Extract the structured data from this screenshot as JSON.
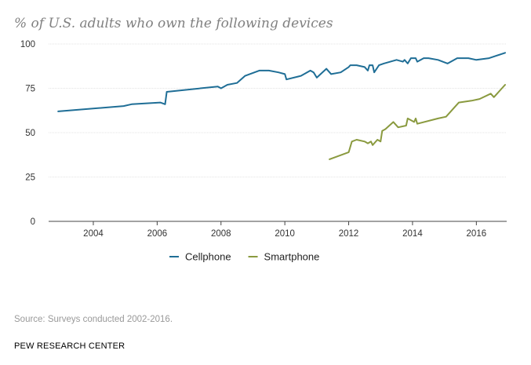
{
  "chart_data": {
    "type": "line",
    "title": "% of U.S. adults who own the following devices",
    "xlabel": "",
    "ylabel": "",
    "xlim": [
      2002.6,
      2016.95
    ],
    "ylim": [
      0,
      100
    ],
    "x_ticks": [
      2004,
      2006,
      2008,
      2010,
      2012,
      2014,
      2016
    ],
    "y_ticks": [
      0,
      25,
      50,
      75,
      100
    ],
    "grid": "horizontal",
    "legend_position": "bottom-center",
    "series": [
      {
        "name": "Cellphone",
        "color": "#1f6e96",
        "points": [
          [
            2002.9,
            62
          ],
          [
            2004.95,
            65
          ],
          [
            2005.2,
            66
          ],
          [
            2006.1,
            67
          ],
          [
            2006.25,
            66
          ],
          [
            2006.3,
            73
          ],
          [
            2007.9,
            76
          ],
          [
            2008.0,
            75
          ],
          [
            2008.2,
            77
          ],
          [
            2008.5,
            78
          ],
          [
            2008.75,
            82
          ],
          [
            2009.2,
            85
          ],
          [
            2009.5,
            85
          ],
          [
            2009.8,
            84
          ],
          [
            2010.0,
            83
          ],
          [
            2010.05,
            80
          ],
          [
            2010.5,
            82
          ],
          [
            2010.8,
            85
          ],
          [
            2010.9,
            84
          ],
          [
            2011.0,
            81
          ],
          [
            2011.3,
            86
          ],
          [
            2011.45,
            83
          ],
          [
            2011.75,
            84
          ],
          [
            2012.0,
            87
          ],
          [
            2012.05,
            88
          ],
          [
            2012.25,
            88
          ],
          [
            2012.5,
            87
          ],
          [
            2012.6,
            85
          ],
          [
            2012.65,
            88
          ],
          [
            2012.75,
            88
          ],
          [
            2012.8,
            84
          ],
          [
            2012.95,
            88
          ],
          [
            2013.1,
            89
          ],
          [
            2013.5,
            91
          ],
          [
            2013.7,
            90
          ],
          [
            2013.75,
            91
          ],
          [
            2013.85,
            89
          ],
          [
            2013.95,
            92
          ],
          [
            2014.1,
            92
          ],
          [
            2014.15,
            90
          ],
          [
            2014.35,
            92
          ],
          [
            2014.5,
            92
          ],
          [
            2014.8,
            91
          ],
          [
            2015.1,
            89
          ],
          [
            2015.4,
            92
          ],
          [
            2015.75,
            92
          ],
          [
            2016.0,
            91
          ],
          [
            2016.4,
            92
          ],
          [
            2016.9,
            95
          ]
        ]
      },
      {
        "name": "Smartphone",
        "color": "#8a9a3f",
        "points": [
          [
            2011.4,
            35
          ],
          [
            2012.0,
            39
          ],
          [
            2012.1,
            45
          ],
          [
            2012.25,
            46
          ],
          [
            2012.5,
            45
          ],
          [
            2012.6,
            44
          ],
          [
            2012.7,
            45
          ],
          [
            2012.75,
            43
          ],
          [
            2012.9,
            46
          ],
          [
            2013.0,
            45
          ],
          [
            2013.05,
            51
          ],
          [
            2013.15,
            52
          ],
          [
            2013.4,
            56
          ],
          [
            2013.55,
            53
          ],
          [
            2013.8,
            54
          ],
          [
            2013.85,
            58
          ],
          [
            2014.05,
            56
          ],
          [
            2014.1,
            58
          ],
          [
            2014.15,
            55
          ],
          [
            2014.8,
            58
          ],
          [
            2015.05,
            59
          ],
          [
            2015.45,
            67
          ],
          [
            2015.85,
            68
          ],
          [
            2016.1,
            69
          ],
          [
            2016.45,
            72
          ],
          [
            2016.55,
            70
          ],
          [
            2016.9,
            77
          ]
        ]
      }
    ]
  },
  "source": "Source: Surveys conducted 2002-2016.",
  "footer": "PEW RESEARCH CENTER"
}
